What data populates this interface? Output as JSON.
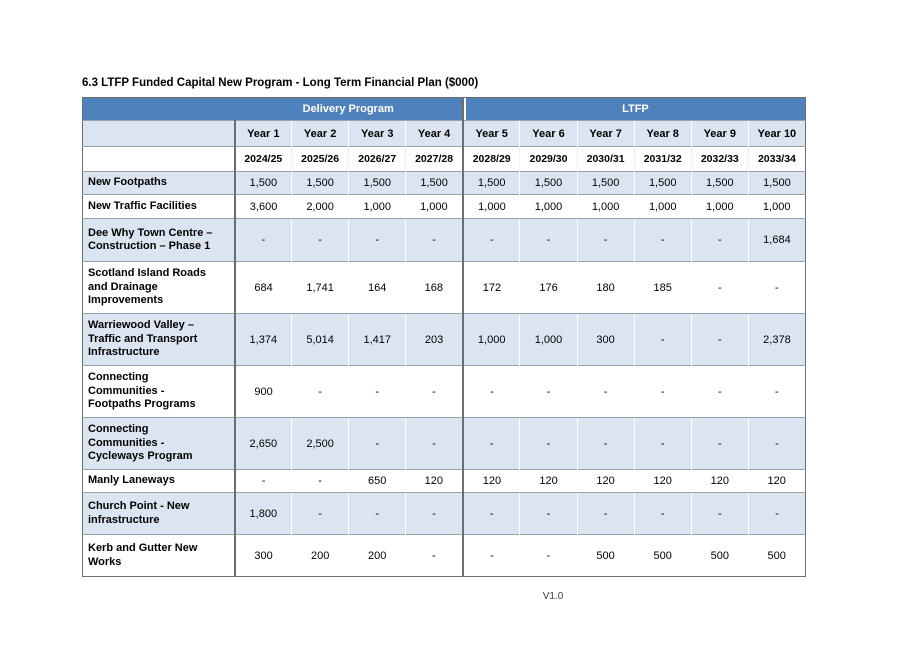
{
  "page": {
    "title": "6.3 LTFP Funded Capital New Program - Long Term Financial Plan ($000)",
    "version": "V1.0"
  },
  "table": {
    "groups": {
      "delivery": "Delivery Program",
      "ltfp": "LTFP"
    },
    "year_headers": [
      "Year 1",
      "Year 2",
      "Year 3",
      "Year 4",
      "Year 5",
      "Year 6",
      "Year 7",
      "Year 8",
      "Year 9",
      "Year 10"
    ],
    "fy_headers": [
      "2024/25",
      "2025/26",
      "2026/27",
      "2027/28",
      "2028/29",
      "2029/30",
      "2030/31",
      "2031/32",
      "2032/33",
      "2033/34"
    ],
    "rows": [
      {
        "label": "New Footpaths",
        "values": [
          "1,500",
          "1,500",
          "1,500",
          "1,500",
          "1,500",
          "1,500",
          "1,500",
          "1,500",
          "1,500",
          "1,500"
        ]
      },
      {
        "label": "New Traffic Facilities",
        "values": [
          "3,600",
          "2,000",
          "1,000",
          "1,000",
          "1,000",
          "1,000",
          "1,000",
          "1,000",
          "1,000",
          "1,000"
        ]
      },
      {
        "label": "Dee Why Town Centre – Construction – Phase 1",
        "values": [
          "-",
          "-",
          "-",
          "-",
          "-",
          "-",
          "-",
          "-",
          "-",
          "1,684"
        ]
      },
      {
        "label": "Scotland Island Roads and Drainage Improvements",
        "values": [
          "684",
          "1,741",
          "164",
          "168",
          "172",
          "176",
          "180",
          "185",
          "-",
          "-"
        ]
      },
      {
        "label": "Warriewood Valley – Traffic and Transport Infrastructure",
        "values": [
          "1,374",
          "5,014",
          "1,417",
          "203",
          "1,000",
          "1,000",
          "300",
          "-",
          "-",
          "2,378"
        ]
      },
      {
        "label": "Connecting Communities - Footpaths Programs",
        "values": [
          "900",
          "-",
          "-",
          "-",
          "-",
          "-",
          "-",
          "-",
          "-",
          "-"
        ]
      },
      {
        "label": "Connecting Communities - Cycleways Program",
        "values": [
          "2,650",
          "2,500",
          "-",
          "-",
          "-",
          "-",
          "-",
          "-",
          "-",
          "-"
        ]
      },
      {
        "label": "Manly Laneways",
        "values": [
          "-",
          "-",
          "650",
          "120",
          "120",
          "120",
          "120",
          "120",
          "120",
          "120"
        ]
      },
      {
        "label": "Church Point - New infrastructure",
        "values": [
          "1,800",
          "-",
          "-",
          "-",
          "-",
          "-",
          "-",
          "-",
          "-",
          "-"
        ]
      },
      {
        "label": "Kerb and Gutter New Works",
        "values": [
          "300",
          "200",
          "200",
          "-",
          "-",
          "-",
          "500",
          "500",
          "500",
          "500"
        ]
      }
    ]
  },
  "colors": {
    "header_blue": "#4F81BD",
    "row_alt_blue": "#DBE5F1",
    "border_dark": "#6D6D6D",
    "border_light": "#98A1AB"
  }
}
